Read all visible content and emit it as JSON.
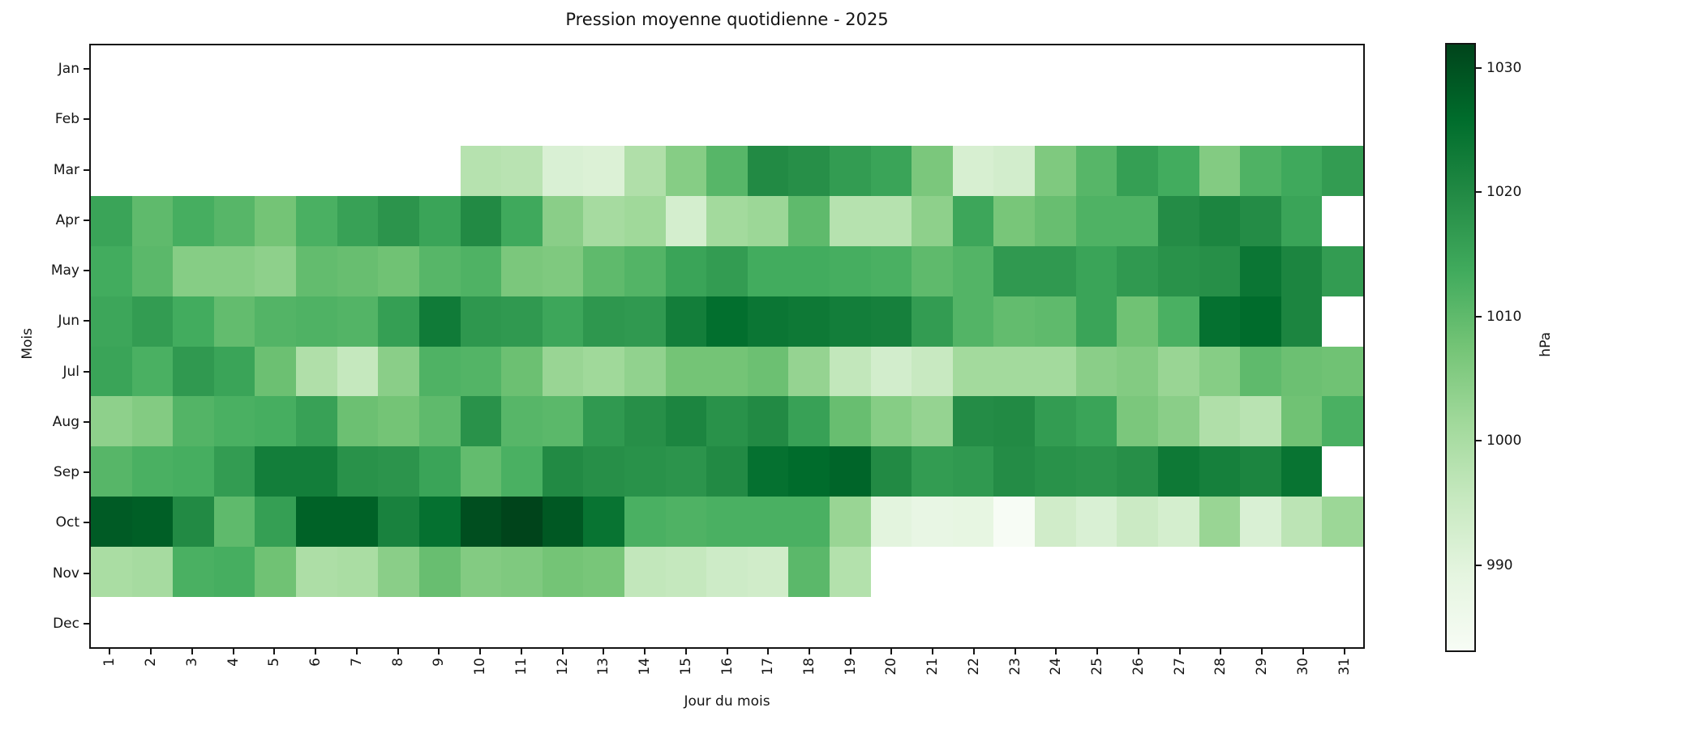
{
  "figure": {
    "background": "#ffffff"
  },
  "chart_data": {
    "type": "heatmap",
    "title": "Pression moyenne quotidienne - 2025",
    "xlabel": "Jour du mois",
    "ylabel": "Mois",
    "x_ticks": [
      "1",
      "2",
      "3",
      "4",
      "5",
      "6",
      "7",
      "8",
      "9",
      "10",
      "11",
      "12",
      "13",
      "14",
      "15",
      "16",
      "17",
      "18",
      "19",
      "20",
      "21",
      "22",
      "23",
      "24",
      "25",
      "26",
      "27",
      "28",
      "29",
      "30",
      "31"
    ],
    "y_ticks": [
      "Jan",
      "Feb",
      "Mar",
      "Apr",
      "May",
      "Jun",
      "Jul",
      "Aug",
      "Sep",
      "Oct",
      "Nov",
      "Dec"
    ],
    "colorbar": {
      "label": "hPa",
      "ticks": [
        1030,
        1020,
        1010,
        1000,
        990
      ],
      "vmin": 983,
      "vmax": 1032,
      "colormap": "Greens"
    },
    "missing_color": "#ffffff",
    "values": [
      [
        null,
        null,
        null,
        null,
        null,
        null,
        null,
        null,
        null,
        null,
        null,
        null,
        null,
        null,
        null,
        null,
        null,
        null,
        null,
        null,
        null,
        null,
        null,
        null,
        null,
        null,
        null,
        null,
        null,
        null,
        null
      ],
      [
        null,
        null,
        null,
        null,
        null,
        null,
        null,
        null,
        null,
        null,
        null,
        null,
        null,
        null,
        null,
        null,
        null,
        null,
        null,
        null,
        null,
        null,
        null,
        null,
        null,
        null,
        null,
        null,
        null,
        null,
        null
      ],
      [
        null,
        null,
        null,
        null,
        null,
        null,
        null,
        null,
        null,
        998,
        997.5,
        991.5,
        991,
        999,
        1005,
        1011,
        1020,
        1019,
        1016.5,
        1015,
        1006.5,
        992,
        993,
        1006,
        1011,
        1016,
        1013.5,
        1005.5,
        1012,
        1014,
        1016.5
      ],
      [
        1015,
        1010,
        1013,
        1011,
        1007.5,
        1012.5,
        1015.5,
        1018,
        1015,
        1020,
        1014,
        1004.5,
        1000.5,
        1001.5,
        992.5,
        1001,
        1002,
        1010,
        998,
        998,
        1004,
        1014.5,
        1007,
        1009,
        1012,
        1012,
        1019.5,
        1021,
        1019.5,
        1015,
        null
      ],
      [
        1013.5,
        1010.5,
        1005,
        1005,
        1004,
        1009.5,
        1009,
        1008,
        1011,
        1012,
        1006.5,
        1006,
        1010,
        1011.5,
        1015,
        1016.5,
        1013.5,
        1013.5,
        1013,
        1012.5,
        1010,
        1011.5,
        1017,
        1017,
        1015,
        1017,
        1018.5,
        1019,
        1024,
        1021,
        1016.5
      ],
      [
        1014.5,
        1016.5,
        1013.5,
        1009.5,
        1011.5,
        1012,
        1011.5,
        1016,
        1023,
        1017.5,
        1017,
        1014.5,
        1017.5,
        1017,
        1022.5,
        1025.5,
        1024,
        1023.5,
        1022.5,
        1022,
        1016.5,
        1011.5,
        1009.5,
        1010,
        1015,
        1008,
        1012.5,
        1025,
        1026,
        1021,
        null
      ],
      [
        1015,
        1012.5,
        1017,
        1015,
        1008.5,
        999,
        995.5,
        1004.5,
        1012,
        1011.5,
        1008.5,
        1002.5,
        1001.5,
        1003.5,
        1007.5,
        1007.5,
        1008.5,
        1003,
        996,
        993,
        995,
        1001,
        1001,
        1001,
        1004.5,
        1005.5,
        1002.5,
        1005,
        1010,
        1008.5,
        1008
      ],
      [
        1004,
        1005.5,
        1011.5,
        1012.5,
        1013,
        1015.5,
        1008.5,
        1007.5,
        1010,
        1018.5,
        1011,
        1010.5,
        1017,
        1019,
        1021,
        1018.5,
        1020,
        1015.5,
        1009,
        1005,
        1003,
        1019.5,
        1020,
        1016.5,
        1015,
        1006.5,
        1004.5,
        999,
        997.5,
        1008,
        1012.5
      ],
      [
        1011,
        1012.5,
        1013,
        1016.5,
        1022.5,
        1022.5,
        1018.5,
        1018,
        1015,
        1009.5,
        1012.5,
        1020,
        1019,
        1018.5,
        1018,
        1020,
        1025,
        1026,
        1027,
        1020,
        1016.5,
        1017,
        1019.5,
        1018.5,
        1018,
        1019,
        1023.5,
        1022,
        1021,
        1024.5,
        null
      ],
      [
        1028.5,
        1028,
        1020,
        1010,
        1016,
        1027.5,
        1027.5,
        1021.5,
        1025,
        1030.5,
        1032,
        1029,
        1024.5,
        1012.5,
        1012,
        1012.5,
        1012.5,
        1012.5,
        1002.5,
        989.5,
        988,
        988.5,
        983,
        993.5,
        991.5,
        994.5,
        992.5,
        1002.5,
        991.5,
        997,
        1002
      ],
      [
        1000,
        1000.5,
        1012.5,
        1013,
        1008,
        999.5,
        1000,
        1004.5,
        1009,
        1005.5,
        1006,
        1007.5,
        1007,
        996,
        995.5,
        994,
        993.5,
        1010.5,
        998.5,
        null,
        null,
        null,
        null,
        null,
        null,
        null,
        null,
        null,
        null,
        null,
        null
      ],
      [
        null,
        null,
        null,
        null,
        null,
        null,
        null,
        null,
        null,
        null,
        null,
        null,
        null,
        null,
        null,
        null,
        null,
        null,
        null,
        null,
        null,
        null,
        null,
        null,
        null,
        null,
        null,
        null,
        null,
        null,
        null
      ]
    ]
  }
}
